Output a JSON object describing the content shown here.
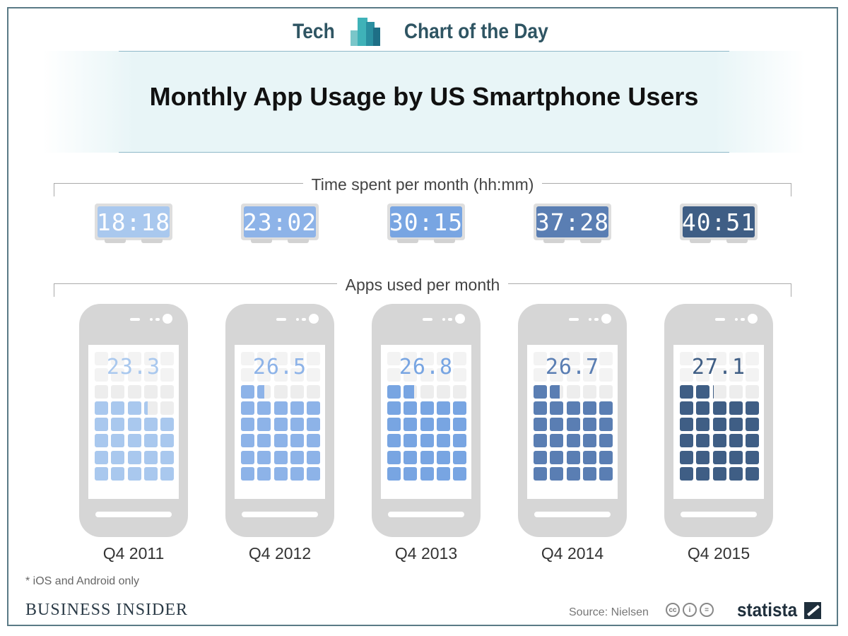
{
  "header": {
    "left_word": "Tech",
    "right_word": "Chart of the Day",
    "title": "Monthly App Usage by US Smartphone Users"
  },
  "sections": {
    "time_label": "Time spent per month (hh:mm)",
    "apps_label": "Apps used per month"
  },
  "colors": {
    "q4_2011": "#a9c8ee",
    "q4_2012": "#8db3e8",
    "q4_2013": "#78a5e2",
    "q4_2014": "#5a7eb3",
    "q4_2015": "#3f5e85",
    "brand_teal": "#2f5563"
  },
  "chart_data": {
    "type": "bar",
    "categories": [
      "Q4 2011",
      "Q4 2012",
      "Q4 2013",
      "Q4 2014",
      "Q4 2015"
    ],
    "series": [
      {
        "name": "Time spent per month (hh:mm)",
        "values": [
          "18:18",
          "23:02",
          "30:15",
          "37:28",
          "40:51"
        ]
      },
      {
        "name": "Apps used per month",
        "values": [
          23.3,
          26.5,
          26.8,
          26.7,
          27.1
        ]
      }
    ],
    "title": "Monthly App Usage by US Smartphone Users"
  },
  "footer": {
    "footnote": "* iOS and Android only",
    "publisher": "BUSINESS INSIDER",
    "source": "Source: Nielsen",
    "brand": "statista",
    "license_icons": [
      "cc-icon",
      "by-icon",
      "nd-icon"
    ]
  }
}
